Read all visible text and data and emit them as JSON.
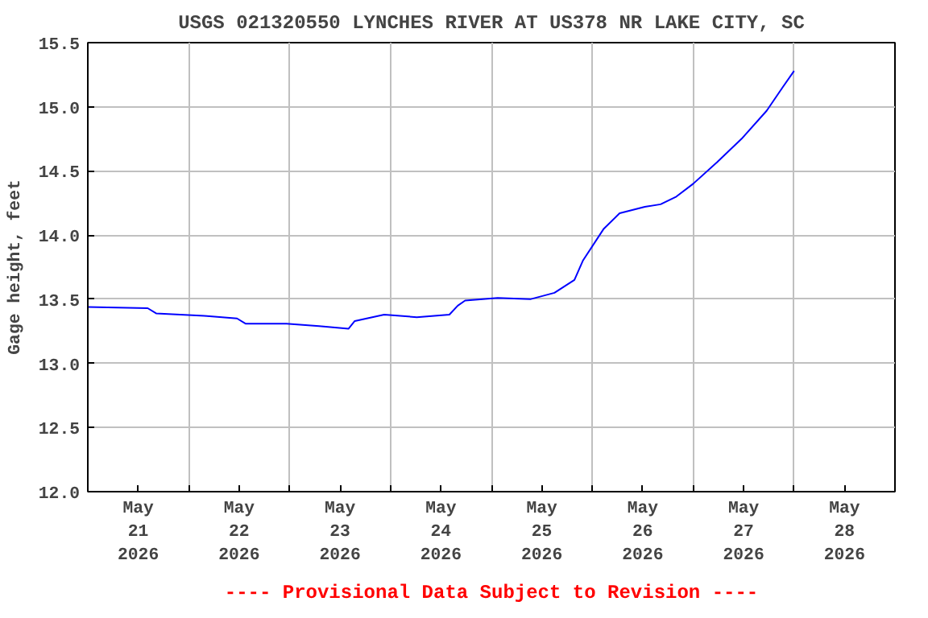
{
  "chart_data": {
    "type": "line",
    "title": "USGS 021320550 LYNCHES RIVER AT US378 NR LAKE CITY, SC",
    "ylabel": "Gage height, feet",
    "annotations": [
      "---- Provisional Data Subject to Revision ----"
    ],
    "series": [
      {
        "color": "#0000ff",
        "x": [
          "2026-05-21T00:00",
          "2026-05-21T14:15",
          "2026-05-21T16:15",
          "2026-05-22T03:45",
          "2026-05-22T11:30",
          "2026-05-22T13:30",
          "2026-05-22T23:15",
          "2026-05-23T07:00",
          "2026-05-23T14:00",
          "2026-05-23T15:30",
          "2026-05-23T22:30",
          "2026-05-24T06:15",
          "2026-05-24T14:00",
          "2026-05-24T16:00",
          "2026-05-24T17:45",
          "2026-05-25T01:30",
          "2026-05-25T09:15",
          "2026-05-25T15:00",
          "2026-05-25T19:45",
          "2026-05-25T21:45",
          "2026-05-26T02:45",
          "2026-05-26T06:30",
          "2026-05-26T12:30",
          "2026-05-26T16:15",
          "2026-05-26T20:00",
          "2026-05-27T00:00",
          "2026-05-27T05:45",
          "2026-05-27T11:30",
          "2026-05-27T17:30",
          "2026-05-27T21:15",
          "2026-05-28T00:00"
        ],
        "values": [
          13.44,
          13.43,
          13.39,
          13.37,
          13.35,
          13.31,
          13.31,
          13.29,
          13.27,
          13.33,
          13.38,
          13.36,
          13.38,
          13.45,
          13.49,
          13.51,
          13.5,
          13.55,
          13.65,
          13.8,
          14.05,
          14.17,
          14.22,
          14.24,
          14.3,
          14.4,
          14.57,
          14.75,
          14.97,
          15.15,
          15.28
        ]
      }
    ],
    "xlim": [
      "2026-05-21T00:00",
      "2026-05-29T00:00"
    ],
    "xticks": [
      {
        "value": "2026-05-21T12:00",
        "label": "May\n21\n2026"
      },
      {
        "value": "2026-05-22T12:00",
        "label": "May\n22\n2026"
      },
      {
        "value": "2026-05-23T12:00",
        "label": "May\n23\n2026"
      },
      {
        "value": "2026-05-24T12:00",
        "label": "May\n24\n2026"
      },
      {
        "value": "2026-05-25T12:00",
        "label": "May\n25\n2026"
      },
      {
        "value": "2026-05-26T12:00",
        "label": "May\n26\n2026"
      },
      {
        "value": "2026-05-27T12:00",
        "label": "May\n27\n2026"
      },
      {
        "value": "2026-05-28T12:00",
        "label": "May\n28\n2026"
      },
      {
        "value": "2026-05-22T00:00",
        "label": null
      },
      {
        "value": "2026-05-23T00:00",
        "label": null
      },
      {
        "value": "2026-05-24T00:00",
        "label": null
      },
      {
        "value": "2026-05-25T00:00",
        "label": null
      },
      {
        "value": "2026-05-26T00:00",
        "label": null
      },
      {
        "value": "2026-05-27T00:00",
        "label": null
      },
      {
        "value": "2026-05-28T00:00",
        "label": null
      }
    ],
    "ylim": [
      12.0,
      15.5
    ],
    "yticks": [
      {
        "value": 12.0,
        "label": "12.0"
      },
      {
        "value": 12.5,
        "label": "12.5"
      },
      {
        "value": 13.0,
        "label": "13.0"
      },
      {
        "value": 13.5,
        "label": "13.5"
      },
      {
        "value": 14.0,
        "label": "14.0"
      },
      {
        "value": 14.5,
        "label": "14.5"
      },
      {
        "value": 15.0,
        "label": "15.0"
      },
      {
        "value": 15.5,
        "label": "15.5"
      }
    ],
    "grid": true
  }
}
